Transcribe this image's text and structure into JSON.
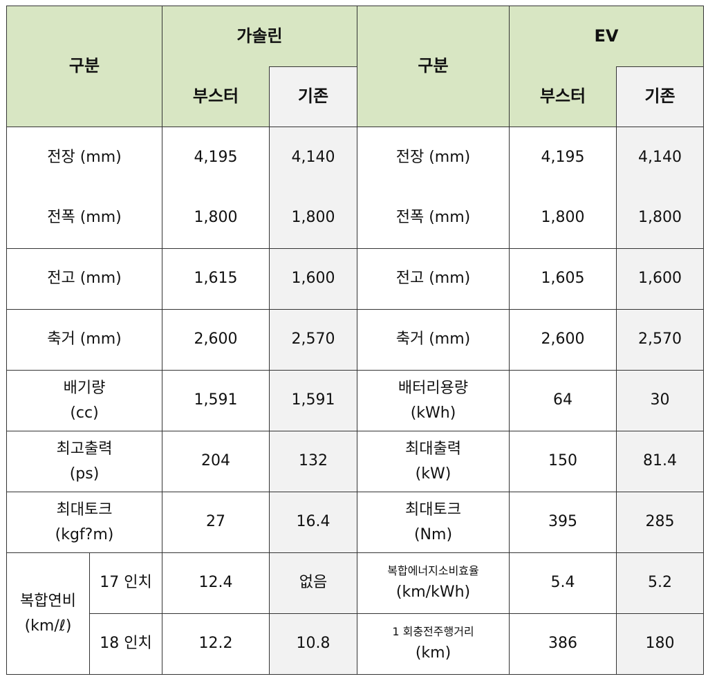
{
  "header": {
    "category_left": "구분",
    "gasoline": "가솔린",
    "category_right": "구분",
    "ev": "EV",
    "booster": "부스터",
    "existing": "기존"
  },
  "rows": [
    {
      "g_label": "전장  (mm)",
      "g_booster": "4,195",
      "g_existing": "4,140",
      "e_label": "전장  (mm)",
      "e_booster": "4,195",
      "e_existing": "4,140"
    },
    {
      "g_label": "전폭  (mm)",
      "g_booster": "1,800",
      "g_existing": "1,800",
      "e_label": "전폭  (mm)",
      "e_booster": "1,800",
      "e_existing": "1,800"
    },
    {
      "g_label": "전고  (mm)",
      "g_booster": "1,615",
      "g_existing": "1,600",
      "e_label": "전고  (mm)",
      "e_booster": "1,605",
      "e_existing": "1,600"
    },
    {
      "g_label": "축거  (mm)",
      "g_booster": "2,600",
      "g_existing": "2,570",
      "e_label": "축거  (mm)",
      "e_booster": "2,600",
      "e_existing": "2,570"
    },
    {
      "g_label_1": "배기량",
      "g_label_2": "(cc)",
      "g_booster": "1,591",
      "g_existing": "1,591",
      "e_label_1": "배터리용량",
      "e_label_2": "(kWh)",
      "e_booster": "64",
      "e_existing": "30"
    },
    {
      "g_label_1": "최고출력",
      "g_label_2": "(ps)",
      "g_booster": "204",
      "g_existing": "132",
      "e_label_1": "최대출력",
      "e_label_2": "(kW)",
      "e_booster": "150",
      "e_existing": "81.4"
    },
    {
      "g_label_1": "최대토크",
      "g_label_2": "(kgf?m)",
      "g_booster": "27",
      "g_existing": "16.4",
      "e_label_1": "최대토크",
      "e_label_2": "(Nm)",
      "e_booster": "395",
      "e_existing": "285"
    }
  ],
  "fuel": {
    "label_1": "복합연비",
    "label_2": "(km/ℓ)",
    "sub": [
      {
        "size": "17 인치",
        "booster": "12.4",
        "existing": "없음",
        "e_label_1": "복합에너지소비효율",
        "e_label_2": "(km/kWh)",
        "e_booster": "5.4",
        "e_existing": "5.2"
      },
      {
        "size": "18 인치",
        "booster": "12.2",
        "existing": "10.8",
        "e_label_1": "1 회충전주행거리",
        "e_label_2": "(km)",
        "e_booster": "386",
        "e_existing": "180"
      }
    ]
  },
  "colors": {
    "header_green": "#d8e6c3",
    "existing_gray": "#f2f2f2"
  }
}
